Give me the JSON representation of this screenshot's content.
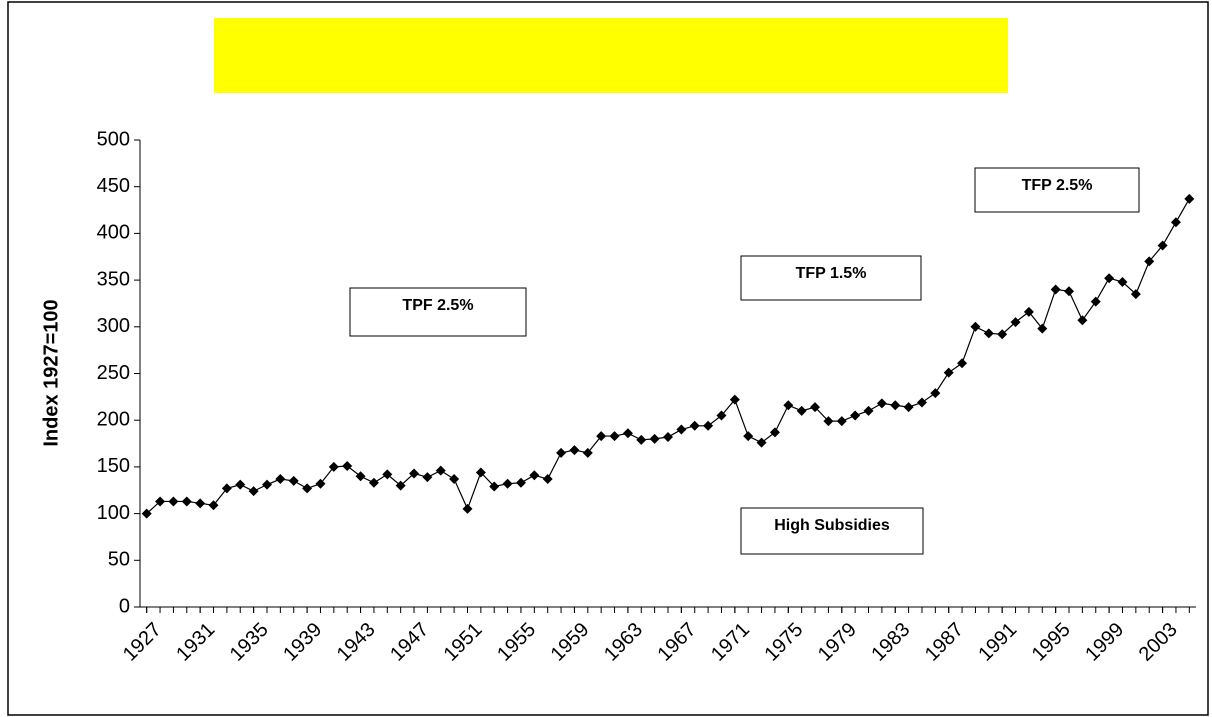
{
  "chart_data": {
    "type": "line",
    "y_label": "Index 1927=100",
    "x": [
      1927,
      1928,
      1929,
      1930,
      1931,
      1932,
      1933,
      1934,
      1935,
      1936,
      1937,
      1938,
      1939,
      1940,
      1941,
      1942,
      1943,
      1944,
      1945,
      1946,
      1947,
      1948,
      1949,
      1950,
      1951,
      1952,
      1953,
      1954,
      1955,
      1956,
      1957,
      1958,
      1959,
      1960,
      1961,
      1962,
      1963,
      1964,
      1965,
      1966,
      1967,
      1968,
      1969,
      1970,
      1971,
      1972,
      1973,
      1974,
      1975,
      1976,
      1977,
      1978,
      1979,
      1980,
      1981,
      1982,
      1983,
      1984,
      1985,
      1986,
      1987,
      1988,
      1989,
      1990,
      1991,
      1992,
      1993,
      1994,
      1995,
      1996,
      1997,
      1998,
      1999,
      2000,
      2001,
      2002,
      2003,
      2004,
      2005
    ],
    "values": [
      100,
      113,
      113,
      113,
      111,
      109,
      127,
      131,
      124,
      131,
      137,
      135,
      127,
      132,
      150,
      151,
      140,
      133,
      142,
      130,
      143,
      139,
      146,
      137,
      105,
      144,
      129,
      132,
      133,
      141,
      137,
      165,
      168,
      165,
      183,
      183,
      186,
      179,
      180,
      182,
      190,
      194,
      194,
      205,
      222,
      183,
      176,
      187,
      216,
      210,
      214,
      199,
      199,
      205,
      210,
      218,
      216,
      214,
      219,
      229,
      251,
      261,
      300,
      293,
      292,
      305,
      316,
      298,
      340,
      338,
      307,
      327,
      352,
      348,
      335,
      370,
      387,
      412,
      437
    ],
    "color": "#000000",
    "xlim": [
      1926.5,
      2005.5
    ],
    "xticks": [
      1927,
      1931,
      1935,
      1939,
      1943,
      1947,
      1951,
      1955,
      1959,
      1963,
      1967,
      1971,
      1975,
      1979,
      1983,
      1987,
      1991,
      1995,
      1999,
      2003
    ],
    "ylim": [
      0,
      500
    ],
    "yticks": [
      0,
      50,
      100,
      150,
      200,
      250,
      300,
      350,
      400,
      450,
      500
    ],
    "annotations": [
      "TPF 2.5%",
      "TFP 1.5%",
      "TFP 2.5%",
      "High Subsidies"
    ]
  }
}
